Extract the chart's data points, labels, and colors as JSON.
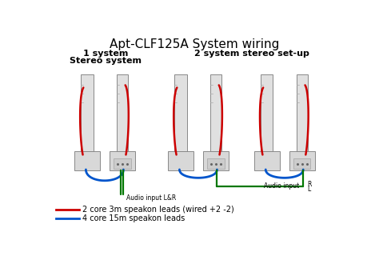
{
  "title": "Apt-CLF125A System wiring",
  "subtitle1": "1 system\nStereo system",
  "subtitle2": "2 system stereo set-up",
  "legend_red": "2 core 3m speakon leads (wired +2 -2)",
  "legend_blue": "4 core 15m speakon leads",
  "audio_input_1": "Audio input L&R",
  "audio_input_r": "R",
  "audio_input_l": "L",
  "audio_input_2": "Audio input",
  "bg_color": "#ffffff",
  "wire_red": "#cc0000",
  "wire_blue": "#0055cc",
  "wire_green": "#007700",
  "title_fontsize": 11,
  "label_fontsize": 6,
  "legend_fontsize": 7
}
